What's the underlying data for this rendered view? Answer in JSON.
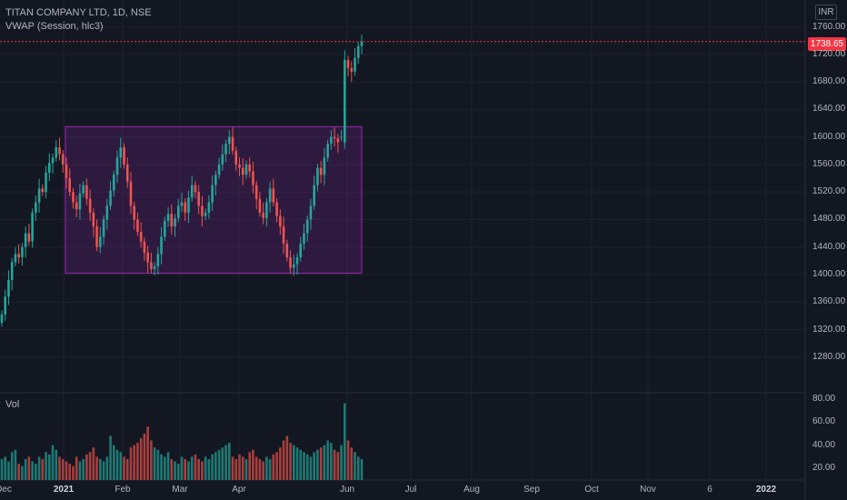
{
  "header": {
    "symbol_line": "TITAN COMPANY LTD, 1D, NSE",
    "indicator_line": "VWAP (Session, hlc3)",
    "volume_label": "Vol",
    "currency": "INR"
  },
  "last_price_label": "1738.65",
  "colors": {
    "background": "#131722",
    "grid": "#1e222d",
    "up": "#26a69a",
    "down": "#ef5350",
    "volume_up": "#1f7a74",
    "volume_down": "#a93f3d",
    "box_border": "#9c27b0",
    "box_fill": "rgba(156,39,176,0.2)",
    "price_line": "#f23645"
  },
  "price_axis": {
    "ticks": [
      "1760.00",
      "1720.00",
      "1680.00",
      "1640.00",
      "1600.00",
      "1560.00",
      "1520.00",
      "1480.00",
      "1440.00",
      "1400.00",
      "1360.00",
      "1320.00",
      "1280.00"
    ]
  },
  "volume_axis": {
    "ticks": [
      "80.00",
      "60.00",
      "40.00",
      "20.00"
    ]
  },
  "time_axis": {
    "ticks": [
      {
        "label": "Dec",
        "bold": false
      },
      {
        "label": "2021",
        "bold": true
      },
      {
        "label": "Feb",
        "bold": false
      },
      {
        "label": "Mar",
        "bold": false
      },
      {
        "label": "Apr",
        "bold": false
      },
      {
        "label": "Jun",
        "bold": false
      },
      {
        "label": "Jul",
        "bold": false
      },
      {
        "label": "Aug",
        "bold": false
      },
      {
        "label": "Sep",
        "bold": false
      },
      {
        "label": "Oct",
        "bold": false
      },
      {
        "label": "Nov",
        "bold": false
      },
      {
        "label": "6",
        "bold": false
      },
      {
        "label": "2022",
        "bold": true
      }
    ]
  },
  "chart_data": {
    "type": "candlestick",
    "price_range": [
      1260,
      1770
    ],
    "volume_range": [
      10,
      82
    ],
    "last_price": 1738.65,
    "range_box": {
      "price_top": 1615,
      "price_bottom": 1402,
      "from_bar": 14,
      "to_bar": 150
    },
    "close": [
      1342,
      1368,
      1392,
      1418,
      1430,
      1425,
      1440,
      1460,
      1448,
      1490,
      1505,
      1525,
      1520,
      1548,
      1562,
      1570,
      1585,
      1575,
      1560,
      1540,
      1520,
      1505,
      1495,
      1518,
      1530,
      1510,
      1490,
      1470,
      1440,
      1455,
      1480,
      1500,
      1522,
      1545,
      1570,
      1585,
      1560,
      1535,
      1500,
      1480,
      1462,
      1448,
      1432,
      1418,
      1408,
      1412,
      1430,
      1455,
      1478,
      1488,
      1470,
      1482,
      1500,
      1505,
      1490,
      1512,
      1530,
      1520,
      1500,
      1485,
      1490,
      1505,
      1530,
      1545,
      1560,
      1575,
      1590,
      1600,
      1580,
      1560,
      1555,
      1545,
      1560,
      1550,
      1530,
      1510,
      1490,
      1482,
      1505,
      1525,
      1505,
      1485,
      1470,
      1445,
      1425,
      1410,
      1415,
      1425,
      1445,
      1460,
      1480,
      1500,
      1530,
      1555,
      1545,
      1570,
      1590,
      1600,
      1598,
      1592,
      1600,
      1712,
      1700,
      1695,
      1715,
      1732,
      1738.65
    ],
    "open": [
      1330,
      1342,
      1368,
      1392,
      1418,
      1430,
      1425,
      1440,
      1460,
      1448,
      1490,
      1505,
      1525,
      1520,
      1548,
      1562,
      1570,
      1585,
      1575,
      1560,
      1540,
      1520,
      1505,
      1495,
      1518,
      1530,
      1510,
      1490,
      1470,
      1440,
      1455,
      1480,
      1500,
      1522,
      1545,
      1570,
      1585,
      1560,
      1535,
      1500,
      1480,
      1462,
      1448,
      1432,
      1418,
      1408,
      1412,
      1430,
      1455,
      1478,
      1488,
      1470,
      1482,
      1500,
      1505,
      1490,
      1512,
      1530,
      1520,
      1500,
      1485,
      1490,
      1505,
      1530,
      1545,
      1560,
      1575,
      1590,
      1600,
      1580,
      1560,
      1555,
      1545,
      1560,
      1550,
      1530,
      1510,
      1490,
      1482,
      1505,
      1525,
      1505,
      1485,
      1470,
      1445,
      1425,
      1410,
      1415,
      1425,
      1445,
      1460,
      1480,
      1500,
      1530,
      1555,
      1545,
      1570,
      1590,
      1600,
      1598,
      1600,
      1592,
      1712,
      1700,
      1695,
      1715,
      1732
    ],
    "volume": [
      28,
      30,
      26,
      34,
      36,
      24,
      22,
      28,
      30,
      26,
      24,
      30,
      28,
      34,
      32,
      40,
      36,
      30,
      28,
      26,
      24,
      22,
      30,
      26,
      28,
      32,
      34,
      38,
      30,
      28,
      26,
      30,
      48,
      40,
      36,
      34,
      30,
      28,
      38,
      40,
      42,
      46,
      50,
      56,
      44,
      38,
      36,
      32,
      30,
      34,
      28,
      26,
      24,
      30,
      28,
      26,
      30,
      32,
      28,
      26,
      30,
      28,
      32,
      34,
      36,
      38,
      40,
      42,
      30,
      28,
      32,
      30,
      28,
      34,
      36,
      30,
      28,
      26,
      30,
      28,
      32,
      34,
      38,
      44,
      48,
      42,
      40,
      38,
      36,
      34,
      32,
      30,
      34,
      36,
      38,
      40,
      44,
      42,
      36,
      34,
      40,
      76,
      44,
      38,
      34,
      30,
      28
    ]
  }
}
